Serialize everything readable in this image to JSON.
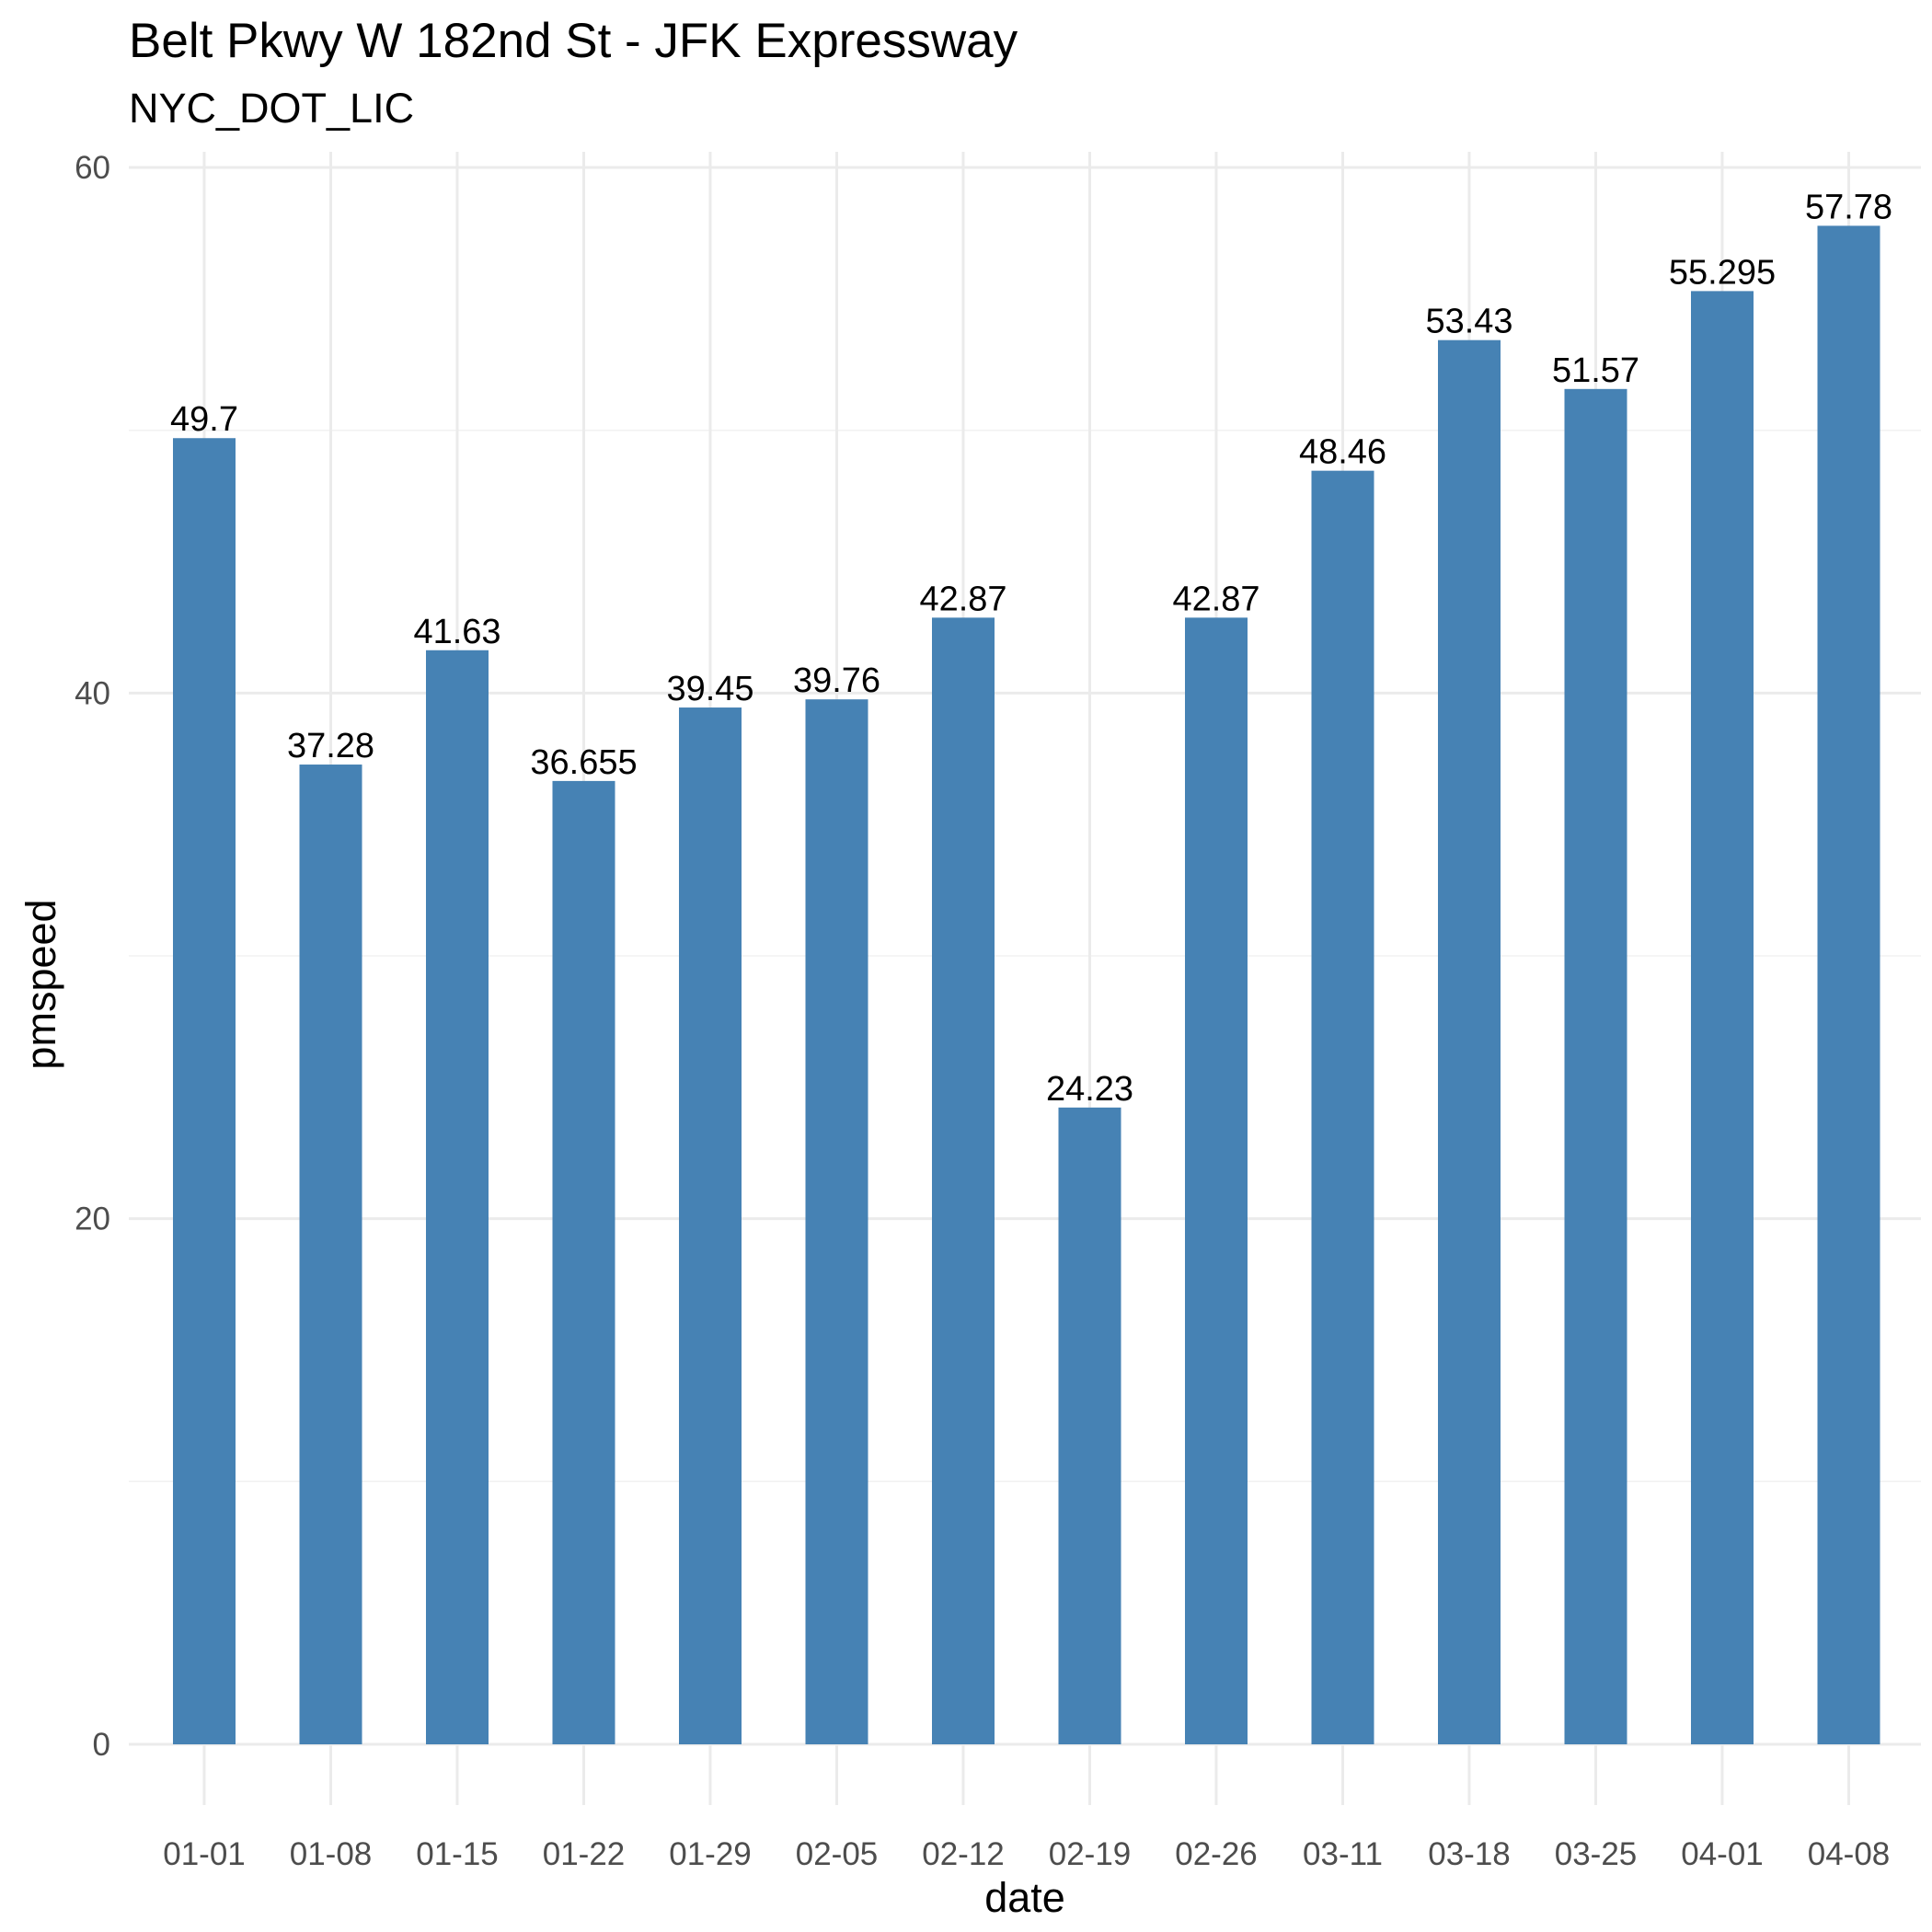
{
  "chart_data": {
    "type": "bar",
    "title": "Belt Pkwy W 182nd St - JFK Expressway",
    "subtitle": "NYC_DOT_LIC",
    "xlabel": "date",
    "ylabel": "pmspeed",
    "categories": [
      "01-01",
      "01-08",
      "01-15",
      "01-22",
      "01-29",
      "02-05",
      "02-12",
      "02-19",
      "02-26",
      "03-11",
      "03-18",
      "03-25",
      "04-01",
      "04-08"
    ],
    "values": [
      49.7,
      37.28,
      41.63,
      36.655,
      39.45,
      39.76,
      42.87,
      24.23,
      42.87,
      48.46,
      53.43,
      51.57,
      55.295,
      57.78
    ],
    "data_labels": [
      "49.7",
      "37.28",
      "41.63",
      "36.655",
      "39.45",
      "39.76",
      "42.87",
      "24.23",
      "42.87",
      "48.46",
      "53.43",
      "51.57",
      "55.295",
      "57.78"
    ],
    "ylim": [
      0,
      60
    ],
    "yticks": [
      0,
      20,
      40,
      60
    ],
    "grid": true,
    "bar_color": "#4682B4"
  }
}
